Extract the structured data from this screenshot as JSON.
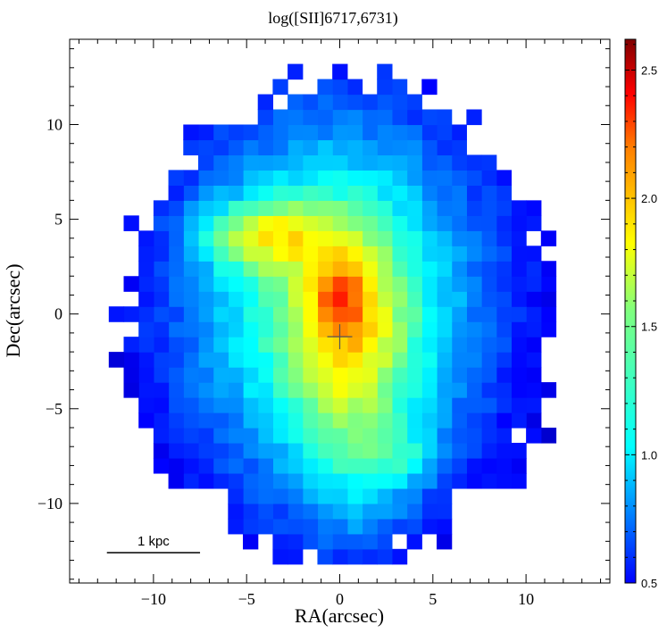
{
  "chart_data": {
    "type": "heatmap",
    "title": "log([SII]6717,6731)",
    "xlabel": "RA(arcsec)",
    "ylabel": "Dec(arcsec)",
    "xlim": [
      14.5,
      -14.5
    ],
    "ylim": [
      -14.2,
      14.5
    ],
    "x_ticks": [
      {
        "value": 10,
        "label": "−10"
      },
      {
        "value": 5,
        "label": "−5"
      },
      {
        "value": 0,
        "label": "0"
      },
      {
        "value": -5,
        "label": "5"
      },
      {
        "value": -10,
        "label": "10"
      }
    ],
    "y_ticks": [
      {
        "value": -10,
        "label": "−10"
      },
      {
        "value": -5,
        "label": "−5"
      },
      {
        "value": 0,
        "label": "0"
      },
      {
        "value": 5,
        "label": "5"
      },
      {
        "value": 10,
        "label": "10"
      }
    ],
    "colorbar": {
      "min": 0.5,
      "max": 2.62,
      "ticks": [
        {
          "value": 0.5,
          "label": "0.5"
        },
        {
          "value": 1.0,
          "label": "1.0"
        },
        {
          "value": 1.5,
          "label": "1.5"
        },
        {
          "value": 2.0,
          "label": "2.0"
        },
        {
          "value": 2.5,
          "label": "2.5"
        }
      ],
      "colormap": "jet"
    },
    "pixel_size_arcsec": 0.8,
    "center_marker": {
      "ra": 0,
      "dec": -1.2,
      "symbol": "+"
    },
    "scalebar": {
      "label": "1 kpc",
      "ra_from": 12.5,
      "ra_to": 7.5,
      "dec": -12.6
    },
    "model_description": "Emission map of an extended galaxy; peak values (~2.6) near RA 0, Dec 1; high (>2.1) ridge from Dec -5 to Dec 4 with arm toward RA 5, Dec 4; background ~0.6-0.9 at outskirts."
  }
}
